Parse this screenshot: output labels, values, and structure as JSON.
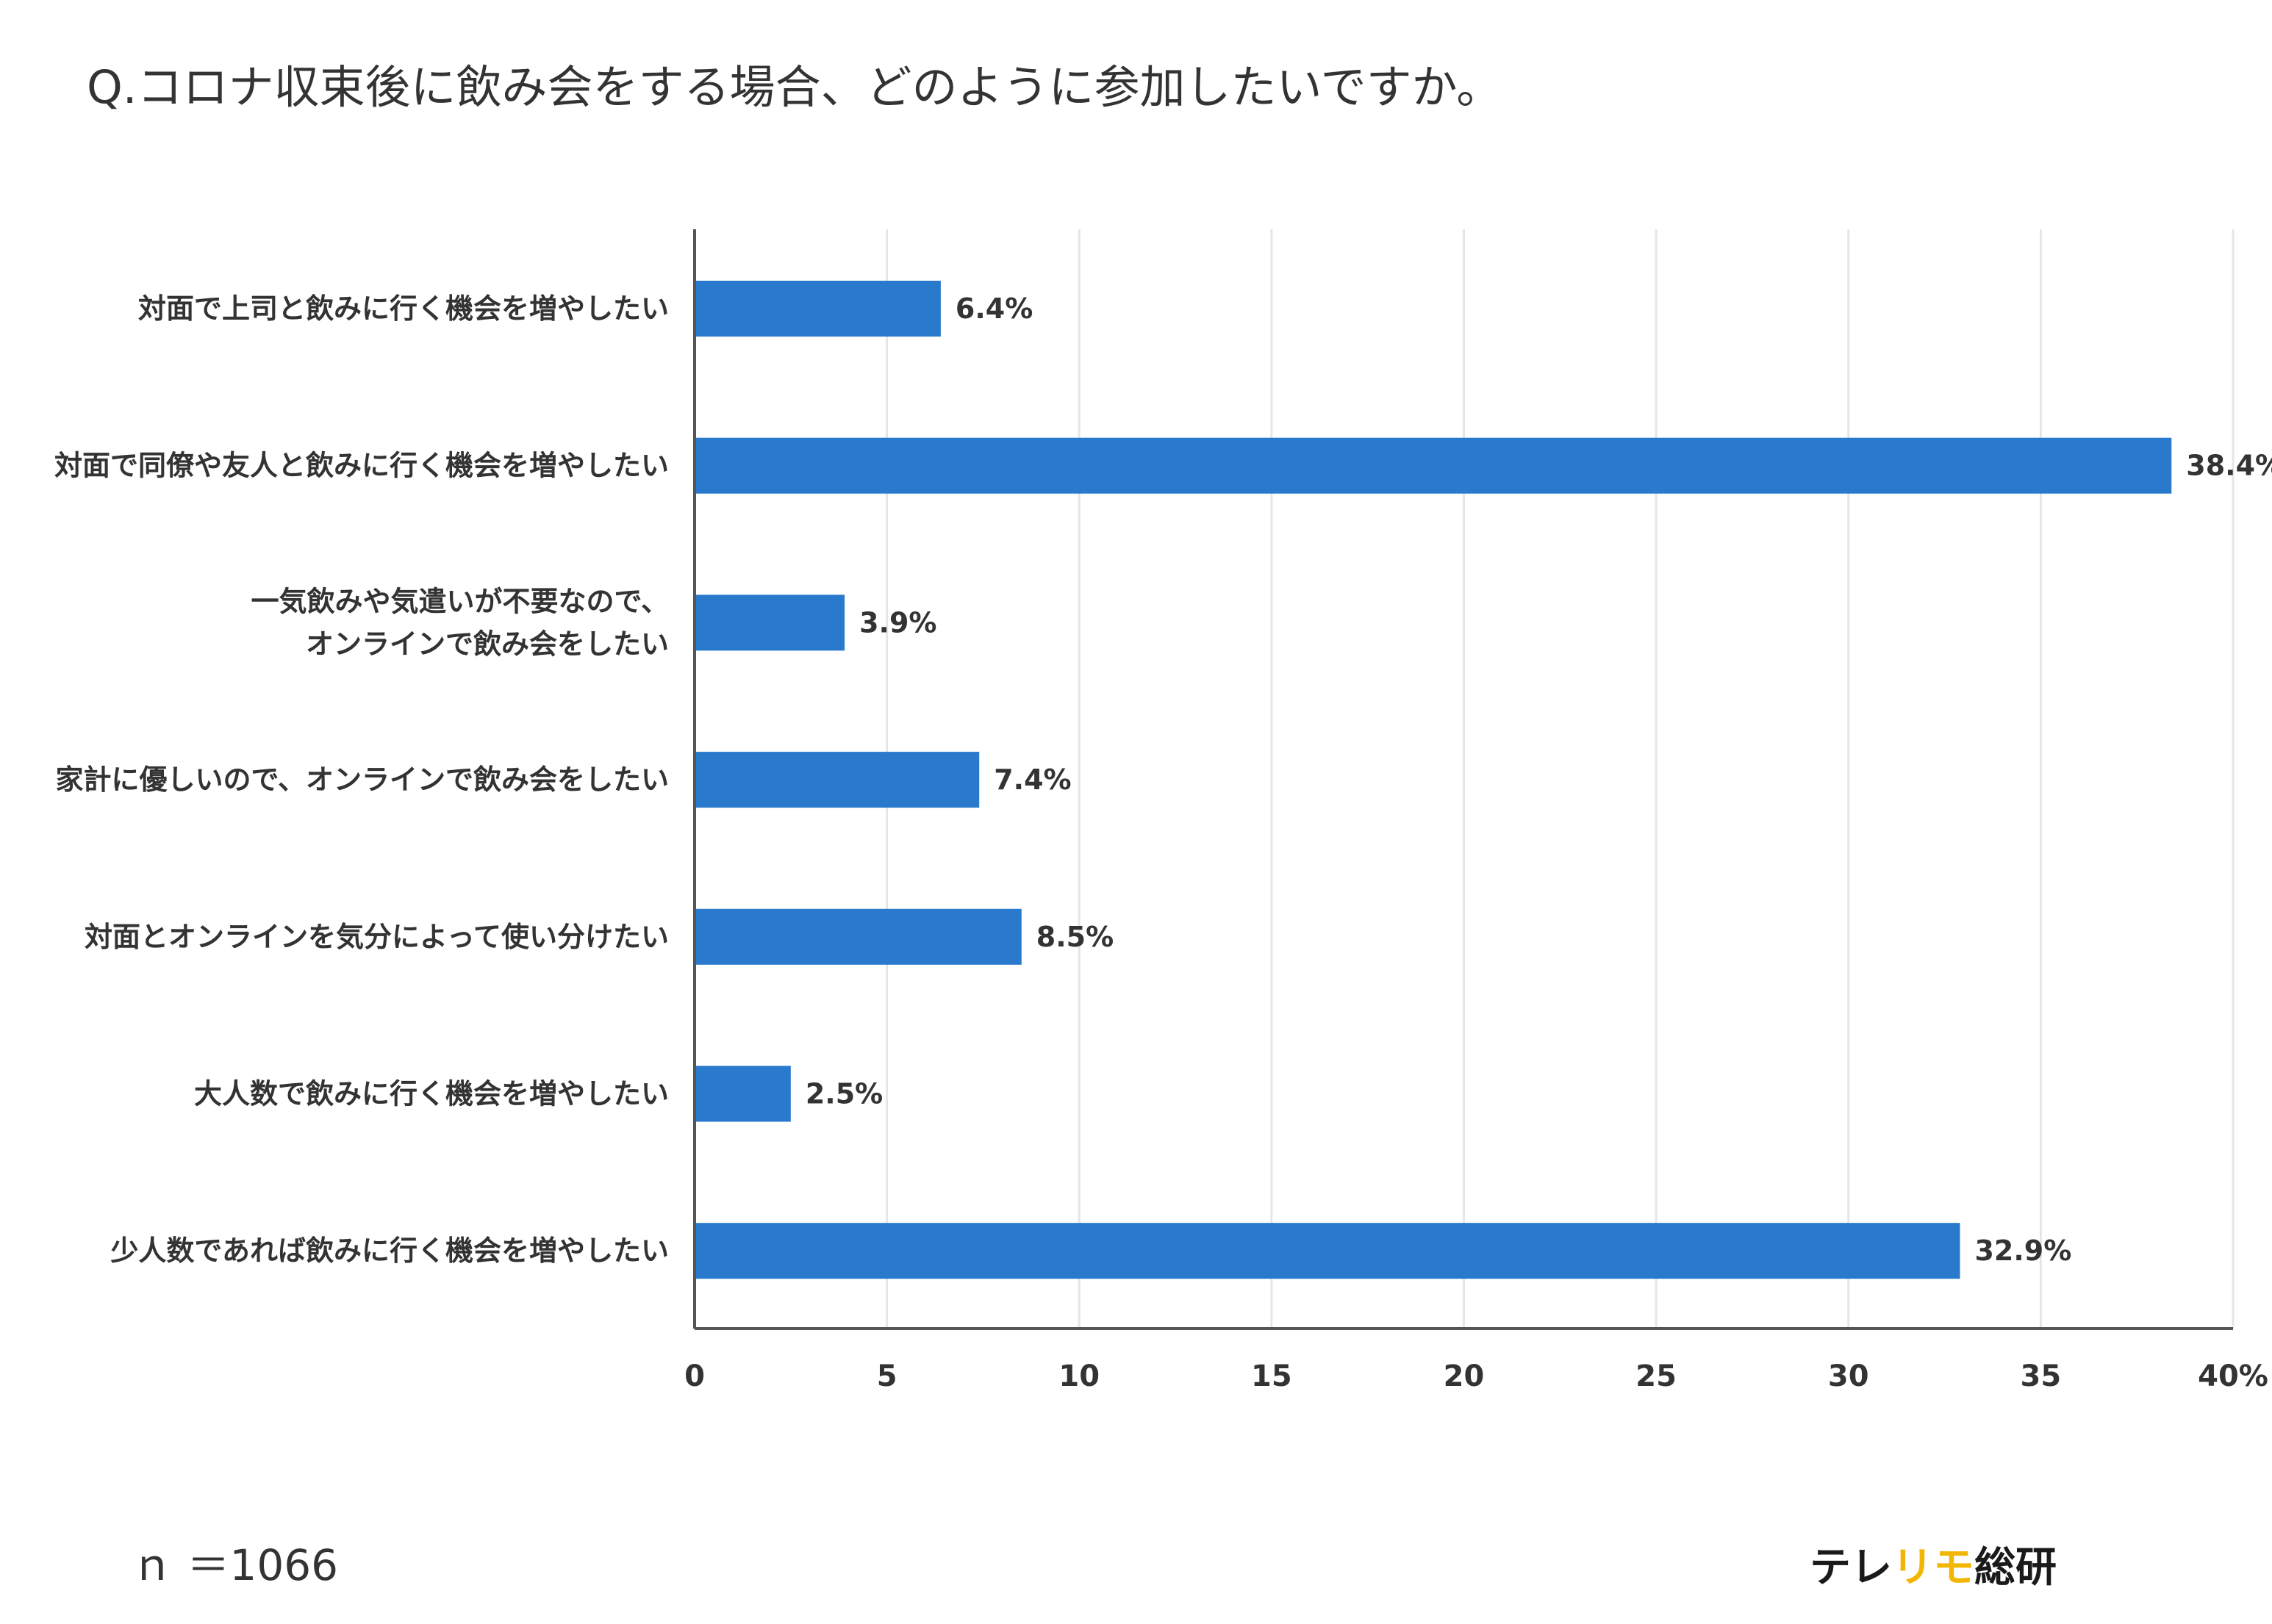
{
  "chart_data": {
    "type": "bar",
    "orientation": "horizontal",
    "title": "Q.コロナ収束後に飲み会をする場合、どのように参加したいですか。",
    "categories": [
      [
        "対面で上司と飲みに行く機会を増やしたい"
      ],
      [
        "対面で同僚や友人と飲みに行く機会を増やしたい"
      ],
      [
        "一気飲みや気遣いが不要なので、",
        "オンラインで飲み会をしたい"
      ],
      [
        "家計に優しいので、オンラインで飲み会をしたい"
      ],
      [
        "対面とオンラインを気分によって使い分けたい"
      ],
      [
        "大人数で飲みに行く機会を増やしたい"
      ],
      [
        "少人数であれば飲みに行く機会を増やしたい"
      ]
    ],
    "values": [
      6.4,
      38.4,
      3.9,
      7.4,
      8.5,
      2.5,
      32.9
    ],
    "value_labels": [
      "6.4%",
      "38.4%",
      "3.9%",
      "7.4%",
      "8.5%",
      "2.5%",
      "32.9%"
    ],
    "xlim": [
      0,
      40
    ],
    "x_ticks": [
      0,
      5,
      10,
      15,
      20,
      25,
      30,
      35,
      40
    ],
    "x_tick_labels": [
      "0",
      "5",
      "10",
      "15",
      "20",
      "25",
      "30",
      "35",
      "40%"
    ],
    "xlabel": "",
    "ylabel": "",
    "grid": true,
    "bar_color": "#2979cc",
    "grid_color": "#e6e6e6",
    "axis_color": "#555555"
  },
  "footer": {
    "sample_size": "ｎ ＝1066",
    "brand_parts": [
      {
        "text": "テレ",
        "color": "#1a1a1a"
      },
      {
        "text": "リモ",
        "color": "#f2b705"
      },
      {
        "text": "総研",
        "color": "#1a1a1a"
      }
    ]
  }
}
